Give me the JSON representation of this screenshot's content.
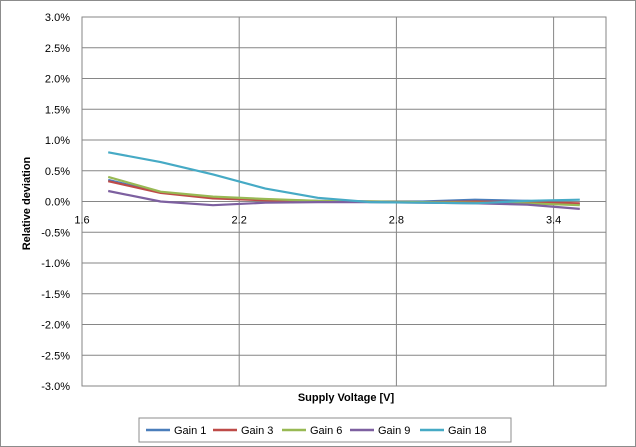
{
  "chart_data": {
    "type": "line",
    "title": "",
    "xlabel": "Supply Voltage [V]",
    "ylabel": "Relative deviation",
    "xlim": [
      1.6,
      3.6
    ],
    "ylim": [
      -3.0,
      3.0
    ],
    "x_ticks": [
      {
        "value": 1.6,
        "label": "1.6"
      },
      {
        "value": 2.2,
        "label": "2.2"
      },
      {
        "value": 2.8,
        "label": "2.8"
      },
      {
        "value": 3.4,
        "label": "3.4"
      }
    ],
    "y_ticks": [
      {
        "value": 3.0,
        "label": "3.0%"
      },
      {
        "value": 2.5,
        "label": "2.5%"
      },
      {
        "value": 2.0,
        "label": "2.0%"
      },
      {
        "value": 1.5,
        "label": "1.5%"
      },
      {
        "value": 1.0,
        "label": "1.0%"
      },
      {
        "value": 0.5,
        "label": "0.5%"
      },
      {
        "value": 0.0,
        "label": "0.0%"
      },
      {
        "value": -0.5,
        "label": "-0.5%"
      },
      {
        "value": -1.0,
        "label": "-1.0%"
      },
      {
        "value": -1.5,
        "label": "-1.5%"
      },
      {
        "value": -2.0,
        "label": "-2.0%"
      },
      {
        "value": -2.5,
        "label": "-2.5%"
      },
      {
        "value": -3.0,
        "label": "-3.0%"
      }
    ],
    "grid": true,
    "legend_position": "bottom",
    "x": [
      1.7,
      1.9,
      2.1,
      2.3,
      2.5,
      2.7,
      2.9,
      3.1,
      3.3,
      3.5
    ],
    "series": [
      {
        "name": "Gain 1",
        "color": "#4a7ebb",
        "values": [
          0.35,
          0.15,
          0.07,
          0.03,
          0.01,
          0.0,
          0.0,
          0.03,
          0.01,
          -0.04
        ]
      },
      {
        "name": "Gain 3",
        "color": "#be4b48",
        "values": [
          0.33,
          0.14,
          0.05,
          0.02,
          0.0,
          0.0,
          -0.01,
          0.0,
          -0.01,
          -0.03
        ]
      },
      {
        "name": "Gain 6",
        "color": "#98b954",
        "values": [
          0.4,
          0.16,
          0.08,
          0.04,
          0.01,
          0.0,
          -0.01,
          -0.02,
          -0.03,
          -0.06
        ]
      },
      {
        "name": "Gain 9",
        "color": "#7d60a0",
        "values": [
          0.17,
          0.0,
          -0.06,
          -0.02,
          -0.01,
          -0.01,
          -0.02,
          -0.03,
          -0.05,
          -0.12
        ]
      },
      {
        "name": "Gain 18",
        "color": "#46aac5",
        "values": [
          0.8,
          0.64,
          0.44,
          0.21,
          0.06,
          -0.01,
          -0.02,
          -0.03,
          0.01,
          0.03
        ]
      }
    ]
  }
}
